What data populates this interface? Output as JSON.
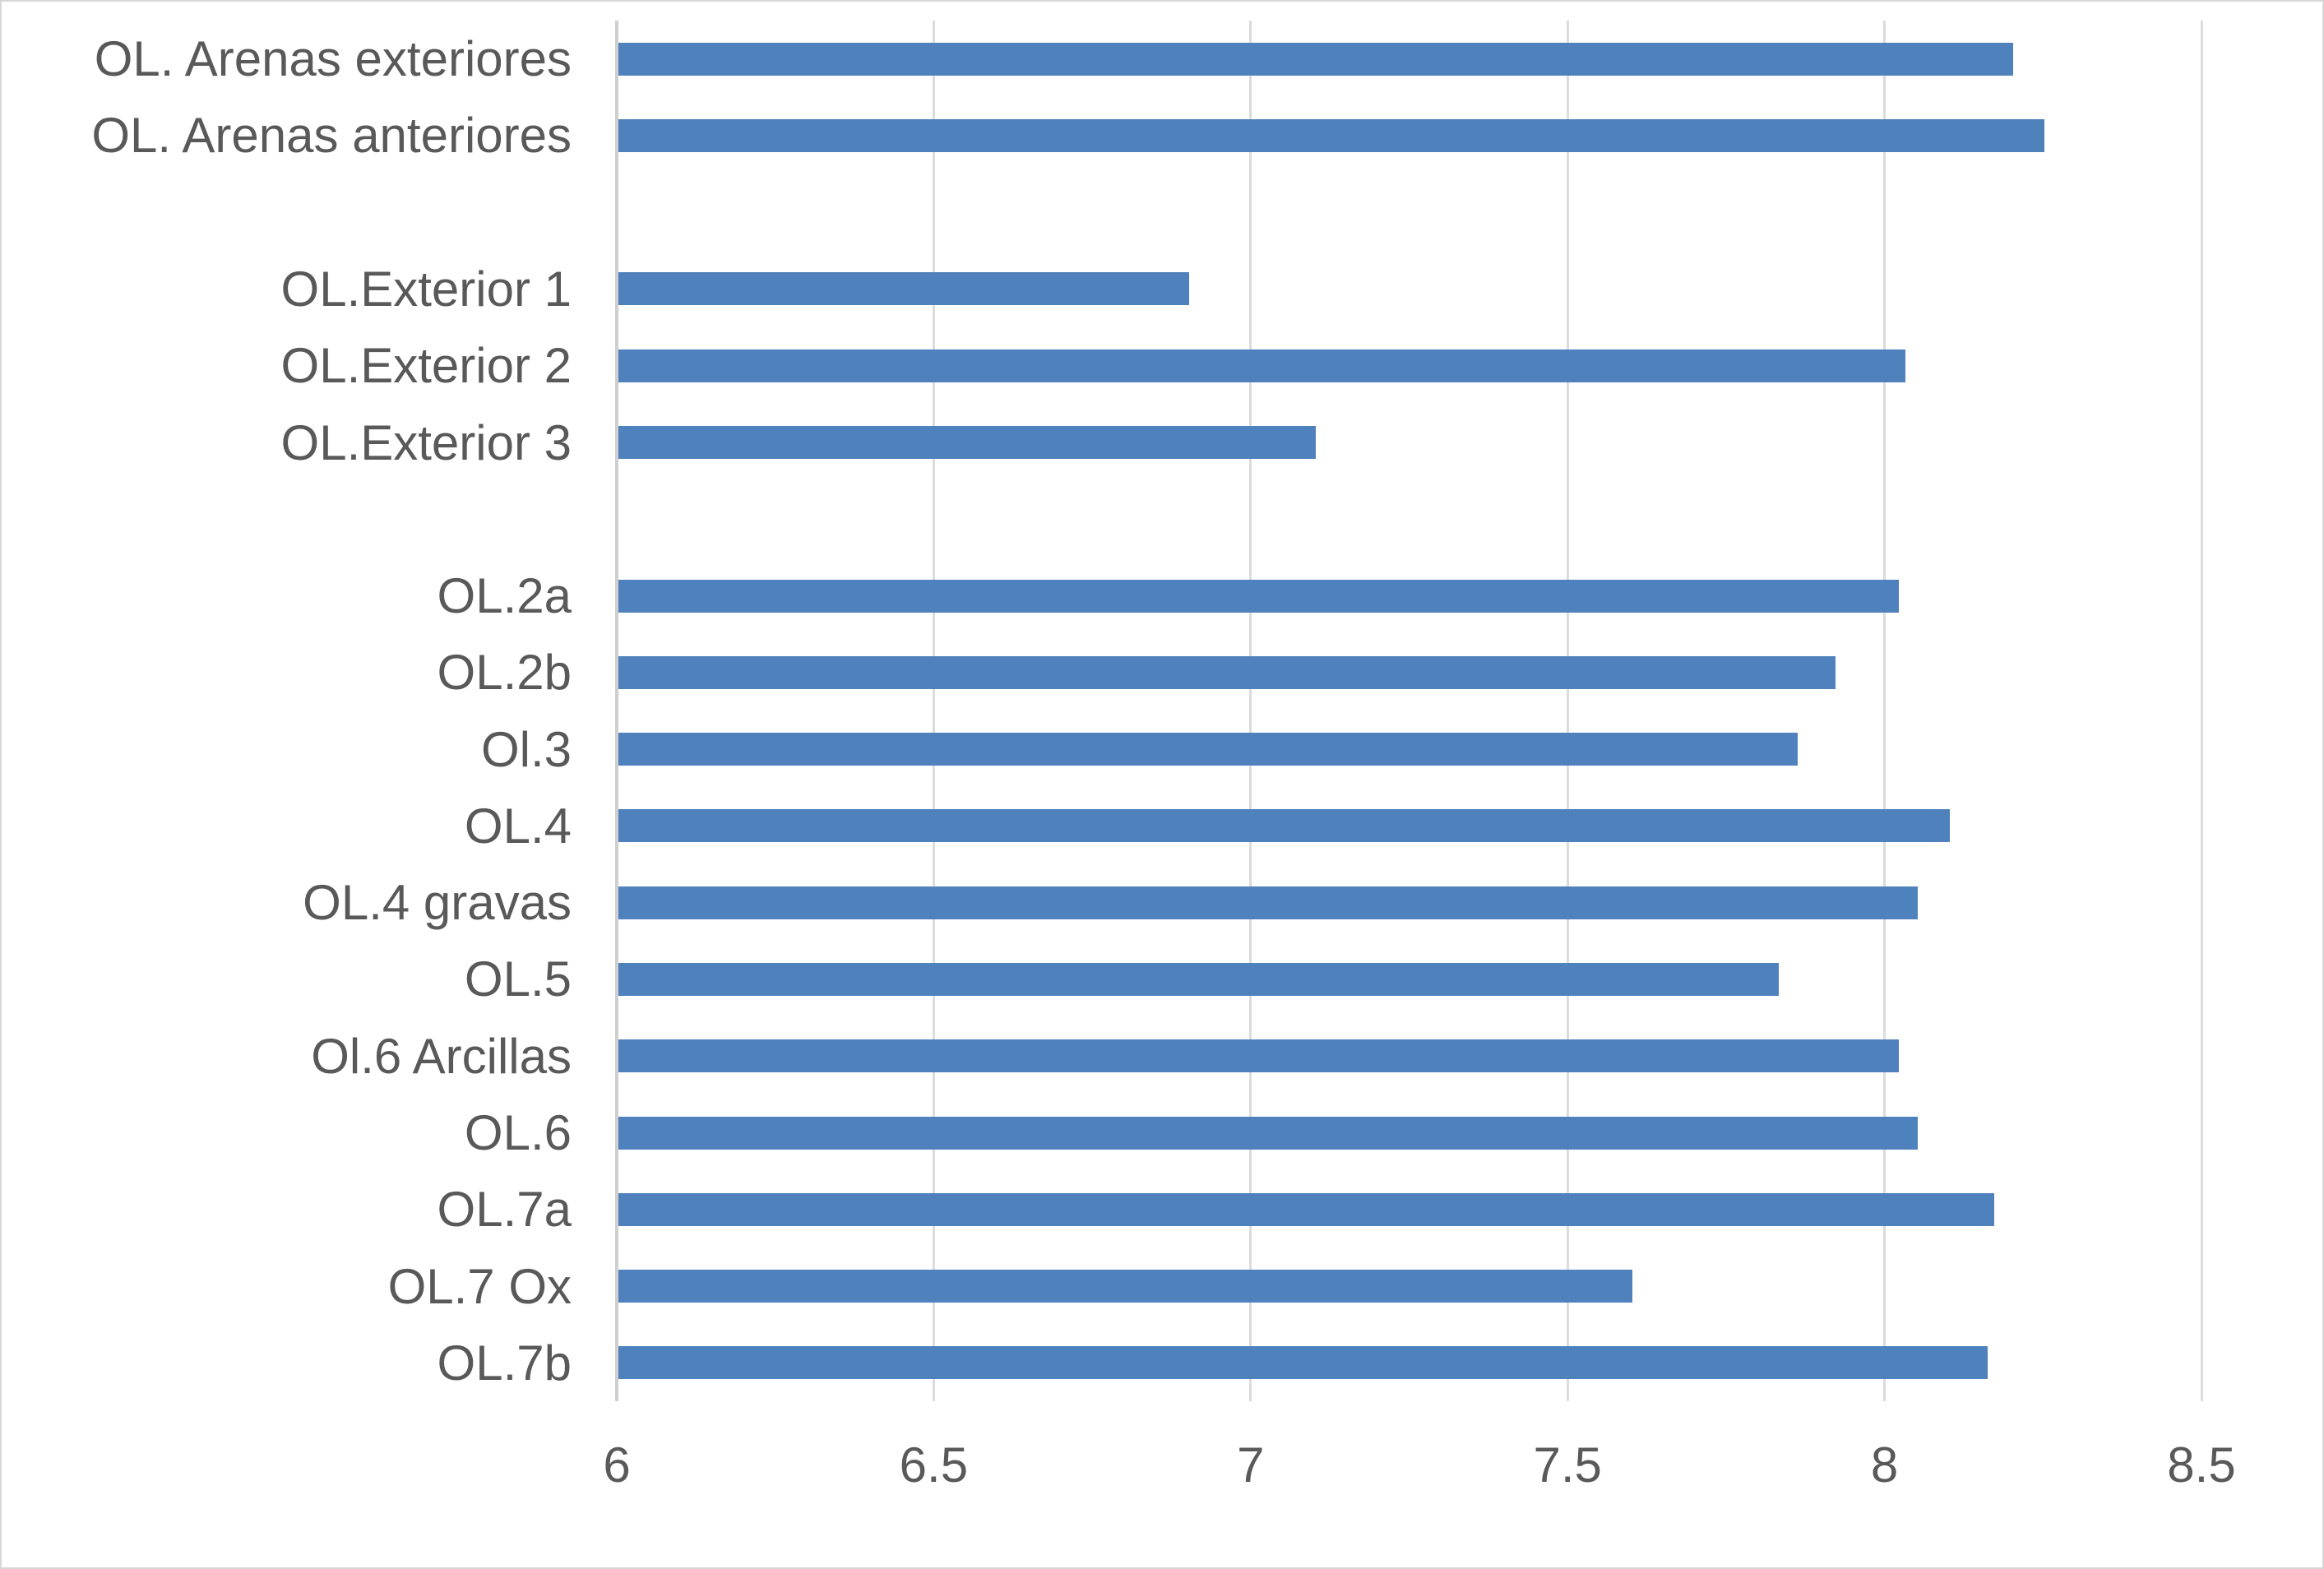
{
  "chart_data": {
    "type": "bar",
    "orientation": "horizontal",
    "title": "",
    "xlabel": "",
    "ylabel": "",
    "xlim": [
      6,
      8.5
    ],
    "x_ticks": [
      6,
      6.5,
      7,
      7.5,
      8,
      8.5
    ],
    "x_tick_labels": [
      "6",
      "6.5",
      "7",
      "7.5",
      "8",
      "8.5"
    ],
    "grid": true,
    "legend": false,
    "categories": [
      "OL. Arenas exteriores",
      "OL. Arenas anteriores",
      "OL.Exterior 1",
      "OL.Exterior 2",
      "OL.Exterior 3",
      "OL.2a",
      "OL.2b",
      "Ol.3",
      "OL.4",
      "OL.4 gravas",
      "OL.5",
      "Ol.6 Arcillas",
      "OL.6",
      "OL.7a",
      "OL.7 Ox",
      "OL.7b"
    ],
    "values": [
      8.2,
      8.25,
      6.9,
      8.03,
      7.1,
      8.02,
      7.92,
      7.86,
      8.1,
      8.05,
      7.83,
      8.02,
      8.05,
      8.17,
      7.6,
      8.16
    ],
    "blank_row_after_indices": [
      1,
      4
    ]
  },
  "style": {
    "bar_color": "#4f81bd",
    "gridline_color": "#dcdcdc",
    "axis_line_color": "#cfcfcf",
    "text_color": "#595959",
    "background_color": "#ffffff"
  }
}
